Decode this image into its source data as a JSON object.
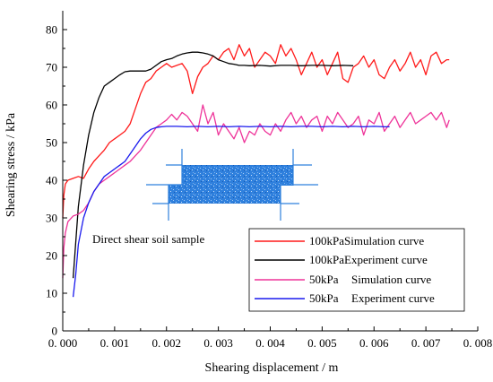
{
  "chart_data": {
    "type": "line",
    "xlabel": "Shearing displacement / m",
    "ylabel": "Shearing stress / kPa",
    "xlim": [
      0,
      0.008
    ],
    "ylim": [
      0,
      85
    ],
    "xticks": [
      0,
      0.001,
      0.002,
      0.003,
      0.004,
      0.005,
      0.006,
      0.007,
      0.008
    ],
    "xtick_labels": [
      "0. 000",
      "0. 001",
      "0. 002",
      "0. 003",
      "0. 004",
      "0. 005",
      "0. 006",
      "0. 007",
      "0. 008"
    ],
    "yticks": [
      0,
      10,
      20,
      30,
      40,
      50,
      60,
      70,
      80
    ],
    "ytick_labels": [
      "0",
      "10",
      "20",
      "30",
      "40",
      "50",
      "60",
      "70",
      "80"
    ],
    "grid": false,
    "legend_placement": "bottom-right",
    "inset_label": "Direct shear soil sample",
    "series": [
      {
        "name": "100kPa Simulation curve",
        "legend_parts": [
          "100kPa",
          "Simulation  curve"
        ],
        "color": "#ff1a1a",
        "x": [
          0.0,
          2e-05,
          5e-05,
          0.0001,
          0.0002,
          0.0003,
          0.0004,
          0.0005,
          0.0006,
          0.0007,
          0.0008,
          0.0009,
          0.001,
          0.0011,
          0.0012,
          0.0013,
          0.0014,
          0.0015,
          0.0016,
          0.0017,
          0.0018,
          0.0019,
          0.002,
          0.0021,
          0.0022,
          0.0023,
          0.0024,
          0.0025,
          0.0026,
          0.0027,
          0.0028,
          0.0029,
          0.003,
          0.0031,
          0.0032,
          0.0033,
          0.0034,
          0.0035,
          0.0036,
          0.0037,
          0.0038,
          0.0039,
          0.004,
          0.0041,
          0.0042,
          0.0043,
          0.0044,
          0.0045,
          0.0046,
          0.0047,
          0.0048,
          0.0049,
          0.005,
          0.0051,
          0.0052,
          0.0053,
          0.0054,
          0.0055,
          0.0056,
          0.0057,
          0.0058,
          0.0059,
          0.006,
          0.0061,
          0.0062,
          0.0063,
          0.0064,
          0.0065,
          0.0066,
          0.0067,
          0.0068,
          0.0069,
          0.007,
          0.0071,
          0.0072,
          0.0073,
          0.0074,
          0.00745
        ],
        "y": [
          30,
          36,
          39,
          40,
          40.5,
          41,
          40.5,
          43,
          45,
          46.5,
          48,
          50,
          51,
          52,
          53,
          55,
          59,
          63,
          66,
          67,
          69,
          70,
          71,
          70,
          70.5,
          71,
          69,
          63,
          67.5,
          70,
          71,
          73,
          72,
          74,
          75,
          72,
          76,
          73,
          75,
          70,
          72,
          74,
          73,
          71,
          76,
          73,
          75,
          72,
          68,
          71,
          74,
          70,
          72,
          68,
          71,
          74,
          67,
          66,
          70,
          71,
          73,
          70,
          72,
          68,
          67,
          70,
          72,
          69,
          71,
          74,
          70,
          72,
          68,
          73,
          74,
          71,
          72,
          72
        ]
      },
      {
        "name": "100kPa Experiment curve",
        "legend_parts": [
          "100kPa",
          "Experiment  curve"
        ],
        "color": "#000000",
        "x": [
          0.0002,
          0.0003,
          0.0004,
          0.0005,
          0.0006,
          0.0007,
          0.0008,
          0.0009,
          0.001,
          0.0011,
          0.0012,
          0.0013,
          0.0014,
          0.0015,
          0.0016,
          0.0017,
          0.0018,
          0.0019,
          0.002,
          0.0021,
          0.0022,
          0.0023,
          0.0024,
          0.0025,
          0.0026,
          0.0027,
          0.0028,
          0.0029,
          0.003,
          0.0031,
          0.0032,
          0.0033,
          0.0034,
          0.0035,
          0.0036,
          0.0038,
          0.004,
          0.0042,
          0.0044,
          0.0046,
          0.0048,
          0.005,
          0.0052,
          0.0054,
          0.0056
        ],
        "y": [
          14,
          33,
          44,
          52,
          58,
          62,
          65,
          66,
          67,
          68,
          68.8,
          69,
          69,
          69,
          69,
          69.5,
          70.5,
          71.5,
          72,
          72.3,
          73,
          73.5,
          73.8,
          74,
          74,
          73.8,
          73.5,
          73,
          72,
          71.5,
          71,
          70.8,
          70.5,
          70.5,
          70.4,
          70.5,
          70.3,
          70.5,
          70.5,
          70.4,
          70.5,
          70.5,
          70.4,
          70.5,
          70.4
        ]
      },
      {
        "name": "50kPa Simulation curve",
        "legend_parts": [
          "50kPa",
          "Simulation  curve"
        ],
        "color": "#ee3399",
        "x": [
          0.0,
          2e-05,
          5e-05,
          0.0001,
          0.0002,
          0.0003,
          0.0004,
          0.0005,
          0.0006,
          0.0007,
          0.0008,
          0.0009,
          0.001,
          0.0011,
          0.0012,
          0.0013,
          0.0014,
          0.0015,
          0.0016,
          0.0017,
          0.0018,
          0.0019,
          0.002,
          0.0021,
          0.0022,
          0.0023,
          0.0024,
          0.0025,
          0.0026,
          0.0027,
          0.0028,
          0.0029,
          0.003,
          0.0031,
          0.0032,
          0.0033,
          0.0034,
          0.0035,
          0.0036,
          0.0037,
          0.0038,
          0.0039,
          0.004,
          0.0041,
          0.0042,
          0.0043,
          0.0044,
          0.0045,
          0.0046,
          0.0047,
          0.0048,
          0.0049,
          0.005,
          0.0051,
          0.0052,
          0.0053,
          0.0054,
          0.0055,
          0.0056,
          0.0057,
          0.0058,
          0.0059,
          0.006,
          0.0061,
          0.0062,
          0.0063,
          0.0064,
          0.0065,
          0.0066,
          0.0067,
          0.0068,
          0.0069,
          0.007,
          0.0071,
          0.0072,
          0.0073,
          0.0074,
          0.00745
        ],
        "y": [
          14,
          22,
          26,
          29,
          30.5,
          31,
          32,
          34,
          37,
          39,
          40,
          41,
          42,
          43,
          44,
          45,
          46.5,
          48,
          50,
          52,
          54,
          55,
          56,
          57.5,
          56,
          58,
          57,
          55,
          53,
          60,
          55,
          58,
          52,
          55,
          53,
          51,
          54,
          50,
          53,
          52,
          55,
          53,
          52,
          55,
          53,
          56,
          58,
          55,
          57,
          54,
          56,
          57,
          53,
          57,
          55,
          58,
          56,
          54,
          55,
          57,
          52,
          56,
          55,
          58,
          53,
          55,
          57,
          54,
          56,
          58,
          55,
          56,
          57,
          58,
          56,
          58,
          54,
          56
        ]
      },
      {
        "name": "50kPa Experiment curve",
        "legend_parts": [
          "50kPa",
          "Experiment  curve"
        ],
        "color": "#1a1aee",
        "x": [
          0.0002,
          0.00025,
          0.0003,
          0.0004,
          0.0005,
          0.0006,
          0.0007,
          0.0008,
          0.0009,
          0.001,
          0.0011,
          0.0012,
          0.0013,
          0.0014,
          0.0015,
          0.0016,
          0.0017,
          0.0018,
          0.0019,
          0.002,
          0.0021,
          0.0022,
          0.0024,
          0.0026,
          0.0028,
          0.003,
          0.0032,
          0.0034,
          0.0036,
          0.0038,
          0.004,
          0.0042,
          0.0044,
          0.0046,
          0.0048,
          0.005,
          0.0052,
          0.0054,
          0.0056,
          0.0058,
          0.006,
          0.0062,
          0.0063
        ],
        "y": [
          9,
          15,
          23,
          30,
          34,
          37,
          39,
          41,
          42,
          43,
          44,
          45,
          47,
          49,
          51,
          52.5,
          53.5,
          54,
          54.2,
          54.3,
          54.3,
          54.3,
          54.2,
          54.3,
          54.2,
          54.3,
          54.2,
          54.3,
          54.2,
          54.3,
          54.2,
          54.3,
          54.2,
          54.3,
          54.3,
          54.2,
          54.3,
          54.2,
          54.3,
          54.2,
          54.3,
          54.2,
          54.2
        ]
      }
    ]
  }
}
